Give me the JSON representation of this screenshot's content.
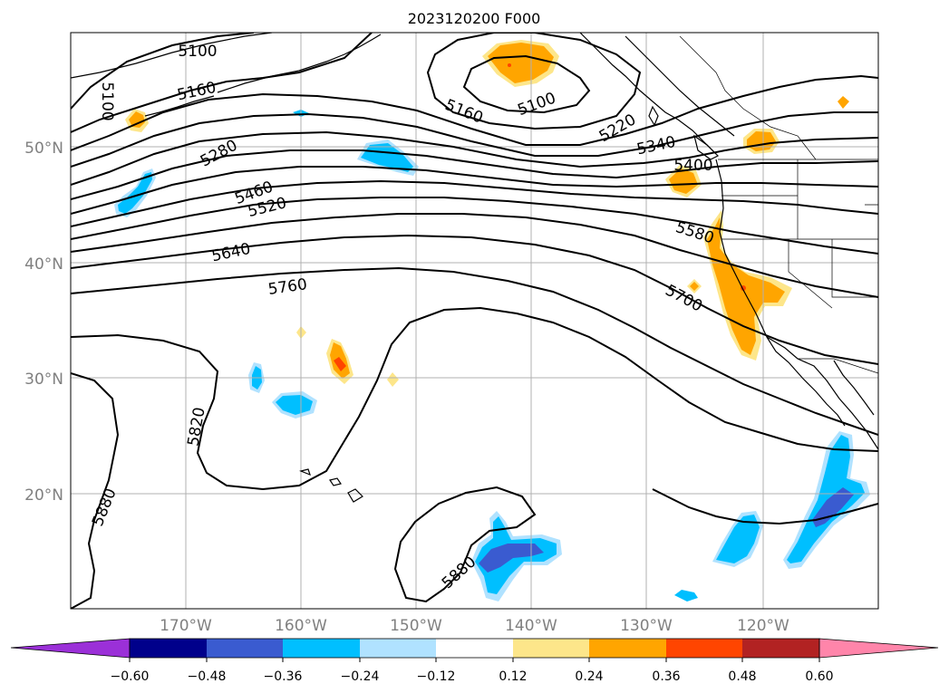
{
  "title": "2023120200 F000",
  "axes": {
    "lat_labels": [
      "50°N",
      "40°N",
      "30°N",
      "20°N"
    ],
    "lon_labels": [
      "170°W",
      "160°W",
      "150°W",
      "140°W",
      "130°W",
      "120°W"
    ],
    "label_color": "#808080",
    "lon_range": [
      -180,
      -110
    ],
    "lat_range": [
      10,
      60
    ],
    "grid": true
  },
  "contours": {
    "variable": "geopotential height",
    "labels": [
      "5100",
      "5100",
      "5160",
      "5280",
      "5460",
      "5520",
      "5640",
      "5760",
      "5160",
      "5100",
      "5220",
      "5340",
      "5400",
      "5580",
      "5700",
      "5820",
      "5880",
      "5880"
    ],
    "color": "#000000"
  },
  "colorbar": {
    "tick_labels": [
      "−0.60",
      "−0.48",
      "−0.36",
      "−0.24",
      "−0.12",
      "0.12",
      "0.24",
      "0.36",
      "0.48",
      "0.60"
    ],
    "colors": [
      "#9b30d8",
      "#00008b",
      "#3a5bd0",
      "#00bfff",
      "#b0e2ff",
      "#ffffff",
      "#fde68a",
      "#ffa500",
      "#ff4500",
      "#b22222",
      "#ff85aa"
    ],
    "extend": "both"
  },
  "shading_colors": {
    "light_blue": "#b0e2ff",
    "deep_sky_blue": "#00bfff",
    "royal_blue": "#3a5bd0",
    "light_yellow": "#fde68a",
    "orange": "#ffa500",
    "red_orange": "#ff4500"
  }
}
